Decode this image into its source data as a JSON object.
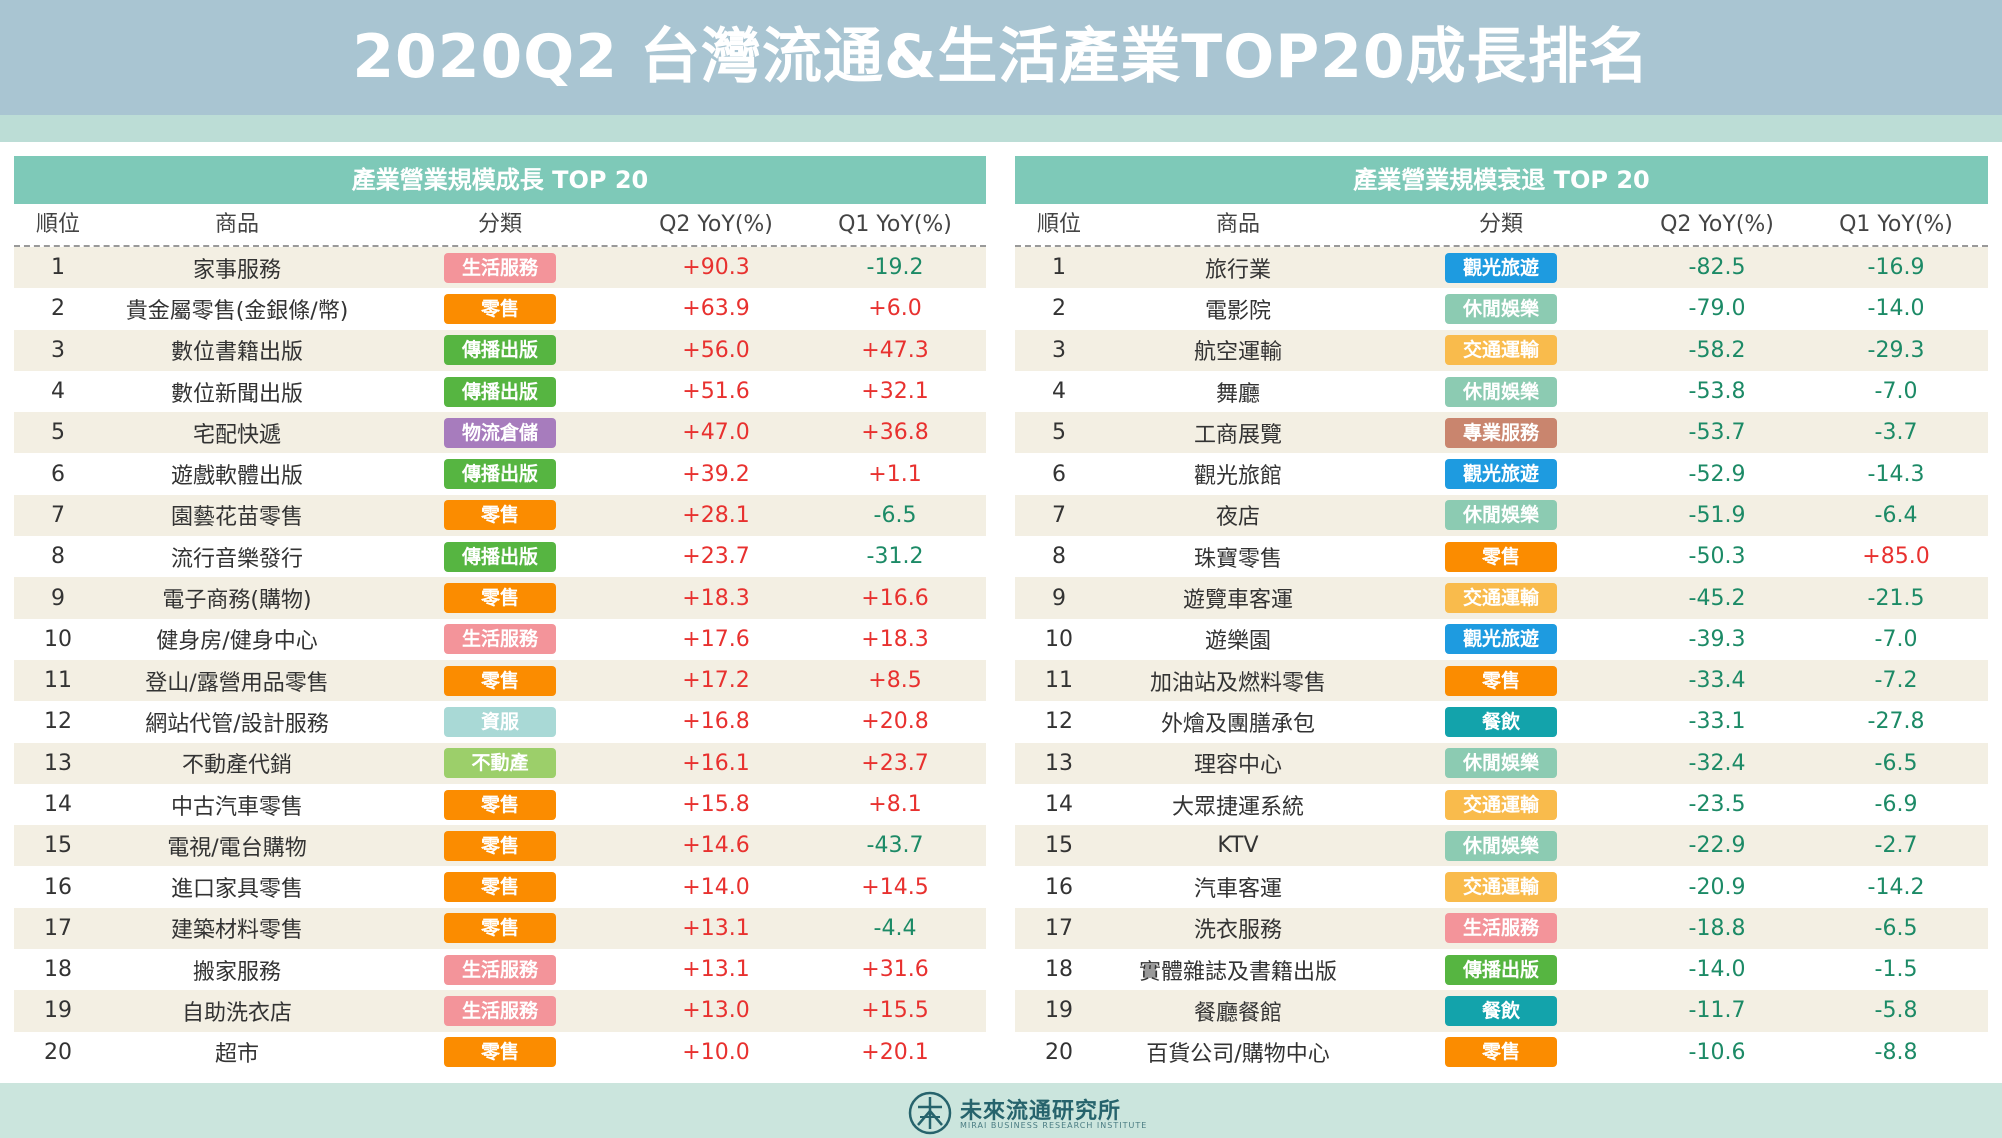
{
  "title": "2020Q2 台灣流通&生活產業TOP20成長排名",
  "columns": [
    "順位",
    "商品",
    "分類",
    "Q2 YoY(%)",
    "Q1 YoY(%)"
  ],
  "category_colors": {
    "生活服務": "#f3949a",
    "零售": "#fb8c00",
    "傳播出版": "#56b541",
    "物流倉儲": "#a77cbd",
    "資服": "#a9d9d6",
    "不動產": "#9ccf6a",
    "觀光旅遊": "#1e9be0",
    "休閒娛樂": "#8ccbb2",
    "交通運輸": "#f9bb4c",
    "專業服務": "#c9856e",
    "餐飲": "#13a3ab"
  },
  "panels": {
    "growth": {
      "title": "產業營業規模成長 TOP 20",
      "rows": [
        {
          "rank": "1",
          "name": "家事服務",
          "category": "生活服務",
          "q2": "+90.3",
          "q1": "-19.2"
        },
        {
          "rank": "2",
          "name": "貴金屬零售(金銀條/幣)",
          "category": "零售",
          "q2": "+63.9",
          "q1": "+6.0"
        },
        {
          "rank": "3",
          "name": "數位書籍出版",
          "category": "傳播出版",
          "q2": "+56.0",
          "q1": "+47.3"
        },
        {
          "rank": "4",
          "name": "數位新聞出版",
          "category": "傳播出版",
          "q2": "+51.6",
          "q1": "+32.1"
        },
        {
          "rank": "5",
          "name": "宅配快遞",
          "category": "物流倉儲",
          "q2": "+47.0",
          "q1": "+36.8"
        },
        {
          "rank": "6",
          "name": "遊戲軟體出版",
          "category": "傳播出版",
          "q2": "+39.2",
          "q1": "+1.1"
        },
        {
          "rank": "7",
          "name": "園藝花苗零售",
          "category": "零售",
          "q2": "+28.1",
          "q1": "-6.5"
        },
        {
          "rank": "8",
          "name": "流行音樂發行",
          "category": "傳播出版",
          "q2": "+23.7",
          "q1": "-31.2"
        },
        {
          "rank": "9",
          "name": "電子商務(購物)",
          "category": "零售",
          "q2": "+18.3",
          "q1": "+16.6"
        },
        {
          "rank": "10",
          "name": "健身房/健身中心",
          "category": "生活服務",
          "q2": "+17.6",
          "q1": "+18.3"
        },
        {
          "rank": "11",
          "name": "登山/露營用品零售",
          "category": "零售",
          "q2": "+17.2",
          "q1": "+8.5"
        },
        {
          "rank": "12",
          "name": "網站代管/設計服務",
          "category": "資服",
          "q2": "+16.8",
          "q1": "+20.8"
        },
        {
          "rank": "13",
          "name": "不動產代銷",
          "category": "不動產",
          "q2": "+16.1",
          "q1": "+23.7"
        },
        {
          "rank": "14",
          "name": "中古汽車零售",
          "category": "零售",
          "q2": "+15.8",
          "q1": "+8.1"
        },
        {
          "rank": "15",
          "name": "電視/電台購物",
          "category": "零售",
          "q2": "+14.6",
          "q1": "-43.7"
        },
        {
          "rank": "16",
          "name": "進口家具零售",
          "category": "零售",
          "q2": "+14.0",
          "q1": "+14.5"
        },
        {
          "rank": "17",
          "name": "建築材料零售",
          "category": "零售",
          "q2": "+13.1",
          "q1": "-4.4"
        },
        {
          "rank": "18",
          "name": "搬家服務",
          "category": "生活服務",
          "q2": "+13.1",
          "q1": "+31.6"
        },
        {
          "rank": "19",
          "name": "自助洗衣店",
          "category": "生活服務",
          "q2": "+13.0",
          "q1": "+15.5"
        },
        {
          "rank": "20",
          "name": "超市",
          "category": "零售",
          "q2": "+10.0",
          "q1": "+20.1"
        }
      ]
    },
    "decline": {
      "title": "產業營業規模衰退 TOP 20",
      "rows": [
        {
          "rank": "1",
          "name": "旅行業",
          "category": "觀光旅遊",
          "q2": "-82.5",
          "q1": "-16.9"
        },
        {
          "rank": "2",
          "name": "電影院",
          "category": "休閒娛樂",
          "q2": "-79.0",
          "q1": "-14.0"
        },
        {
          "rank": "3",
          "name": "航空運輸",
          "category": "交通運輸",
          "q2": "-58.2",
          "q1": "-29.3"
        },
        {
          "rank": "4",
          "name": "舞廳",
          "category": "休閒娛樂",
          "q2": "-53.8",
          "q1": "-7.0"
        },
        {
          "rank": "5",
          "name": "工商展覽",
          "category": "專業服務",
          "q2": "-53.7",
          "q1": "-3.7"
        },
        {
          "rank": "6",
          "name": "觀光旅館",
          "category": "觀光旅遊",
          "q2": "-52.9",
          "q1": "-14.3"
        },
        {
          "rank": "7",
          "name": "夜店",
          "category": "休閒娛樂",
          "q2": "-51.9",
          "q1": "-6.4"
        },
        {
          "rank": "8",
          "name": "珠寶零售",
          "category": "零售",
          "q2": "-50.3",
          "q1": "+85.0"
        },
        {
          "rank": "9",
          "name": "遊覽車客運",
          "category": "交通運輸",
          "q2": "-45.2",
          "q1": "-21.5"
        },
        {
          "rank": "10",
          "name": "遊樂園",
          "category": "觀光旅遊",
          "q2": "-39.3",
          "q1": "-7.0"
        },
        {
          "rank": "11",
          "name": "加油站及燃料零售",
          "category": "零售",
          "q2": "-33.4",
          "q1": "-7.2"
        },
        {
          "rank": "12",
          "name": "外燴及團膳承包",
          "category": "餐飲",
          "q2": "-33.1",
          "q1": "-27.8"
        },
        {
          "rank": "13",
          "name": "理容中心",
          "category": "休閒娛樂",
          "q2": "-32.4",
          "q1": "-6.5"
        },
        {
          "rank": "14",
          "name": "大眾捷運系統",
          "category": "交通運輸",
          "q2": "-23.5",
          "q1": "-6.9"
        },
        {
          "rank": "15",
          "name": "KTV",
          "category": "休閒娛樂",
          "q2": "-22.9",
          "q1": "-2.7"
        },
        {
          "rank": "16",
          "name": "汽車客運",
          "category": "交通運輸",
          "q2": "-20.9",
          "q1": "-14.2"
        },
        {
          "rank": "17",
          "name": "洗衣服務",
          "category": "生活服務",
          "q2": "-18.8",
          "q1": "-6.5"
        },
        {
          "rank": "18",
          "name": "實體雜誌及書籍出版",
          "category": "傳播出版",
          "q2": "-14.0",
          "q1": "-1.5"
        },
        {
          "rank": "19",
          "name": "餐廳餐館",
          "category": "餐飲",
          "q2": "-11.7",
          "q1": "-5.8"
        },
        {
          "rank": "20",
          "name": "百貨公司/購物中心",
          "category": "零售",
          "q2": "-10.6",
          "q1": "-8.8"
        }
      ]
    }
  },
  "footer": {
    "name": "未來流通研究所",
    "subtitle": "MIRAI BUSINESS RESEARCH INSTITUTE",
    "logo_icon": "institute-logo-icon"
  }
}
